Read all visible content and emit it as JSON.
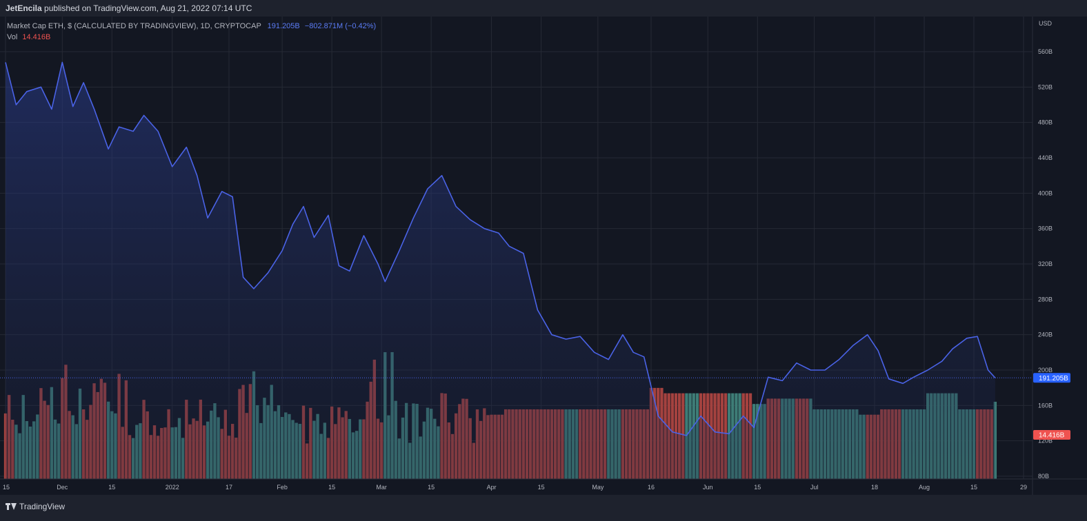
{
  "header": {
    "author": "JetEncila",
    "published_text": "published on TradingView.com, Aug 21, 2022 07:14 UTC"
  },
  "legend": {
    "symbol": "Market Cap ETH, $ (CALCULATED BY TRADINGVIEW), 1D, CRYPTOCAP",
    "last_value": "191.205B",
    "change": "−802.871M (−0.42%)",
    "volume_label": "Vol",
    "volume_value": "14.416B"
  },
  "footer": {
    "brand": "TradingView"
  },
  "colors": {
    "line": "#4a63e7",
    "volume_up": "#3e7d77",
    "volume_down": "#a4423f",
    "background": "#131722",
    "grid": "#262a35",
    "price_tag": "#2962ff",
    "volume_tag": "#ef5350"
  },
  "icons": {
    "logo": "tradingview-logo-icon"
  },
  "chart_data": {
    "type": "area",
    "title": "Market Cap ETH, $ (CALCULATED BY TRADINGVIEW), 1D, CRYPTOCAP",
    "y_unit": "USD",
    "ylim": [
      80,
      590
    ],
    "y_ticks": [
      "560B",
      "520B",
      "480B",
      "440B",
      "400B",
      "360B",
      "320B",
      "280B",
      "240B",
      "200B",
      "160B",
      "120B",
      "80B"
    ],
    "x_ticks": [
      "15",
      "Dec",
      "15",
      "2022",
      "17",
      "Feb",
      "15",
      "Mar",
      "15",
      "Apr",
      "15",
      "May",
      "16",
      "Jun",
      "15",
      "Jul",
      "18",
      "Aug",
      "15",
      "29"
    ],
    "x_range": [
      "2021-11-15",
      "2022-08-29"
    ],
    "grid": true,
    "last_price": "191.205B",
    "last_volume": "14.416B",
    "series": [
      {
        "name": "Market Cap ETH",
        "unit": "B USD",
        "dates": [
          "2021-11-15",
          "2021-11-18",
          "2021-11-21",
          "2021-11-25",
          "2021-11-28",
          "2021-12-01",
          "2021-12-04",
          "2021-12-07",
          "2021-12-10",
          "2021-12-14",
          "2021-12-17",
          "2021-12-21",
          "2021-12-24",
          "2021-12-28",
          "2022-01-01",
          "2022-01-05",
          "2022-01-08",
          "2022-01-11",
          "2022-01-15",
          "2022-01-18",
          "2022-01-21",
          "2022-01-24",
          "2022-01-28",
          "2022-02-01",
          "2022-02-04",
          "2022-02-07",
          "2022-02-10",
          "2022-02-14",
          "2022-02-17",
          "2022-02-20",
          "2022-02-24",
          "2022-02-28",
          "2022-03-02",
          "2022-03-06",
          "2022-03-10",
          "2022-03-14",
          "2022-03-18",
          "2022-03-22",
          "2022-03-26",
          "2022-03-30",
          "2022-04-03",
          "2022-04-06",
          "2022-04-10",
          "2022-04-14",
          "2022-04-18",
          "2022-04-22",
          "2022-04-26",
          "2022-04-30",
          "2022-05-04",
          "2022-05-08",
          "2022-05-11",
          "2022-05-14",
          "2022-05-18",
          "2022-05-22",
          "2022-05-26",
          "2022-05-30",
          "2022-06-03",
          "2022-06-07",
          "2022-06-11",
          "2022-06-14",
          "2022-06-18",
          "2022-06-22",
          "2022-06-26",
          "2022-06-30",
          "2022-07-04",
          "2022-07-08",
          "2022-07-12",
          "2022-07-16",
          "2022-07-19",
          "2022-07-22",
          "2022-07-26",
          "2022-07-29",
          "2022-08-02",
          "2022-08-06",
          "2022-08-09",
          "2022-08-13",
          "2022-08-16",
          "2022-08-19",
          "2022-08-21"
        ],
        "values": [
          548,
          500,
          515,
          520,
          495,
          548,
          498,
          525,
          495,
          450,
          475,
          470,
          488,
          470,
          430,
          452,
          420,
          372,
          402,
          396,
          305,
          292,
          310,
          335,
          365,
          385,
          350,
          375,
          318,
          312,
          352,
          320,
          300,
          335,
          372,
          405,
          420,
          385,
          370,
          360,
          355,
          340,
          332,
          268,
          240,
          235,
          238,
          220,
          212,
          240,
          220,
          215,
          148,
          130,
          126,
          148,
          130,
          128,
          148,
          135,
          192,
          188,
          208,
          200,
          200,
          212,
          228,
          240,
          222,
          190,
          185,
          192,
          200,
          210,
          224,
          236,
          238,
          200,
          191.2
        ]
      },
      {
        "name": "Vol",
        "unit": "B USD",
        "dates": [
          "2021-11-15",
          "2021-11-22",
          "2021-12-01",
          "2021-12-04",
          "2021-12-10",
          "2021-12-20",
          "2022-01-01",
          "2022-01-10",
          "2022-01-20",
          "2022-01-22",
          "2022-02-01",
          "2022-02-15",
          "2022-02-24",
          "2022-03-05",
          "2022-03-15",
          "2022-03-25",
          "2022-04-05",
          "2022-04-15",
          "2022-05-01",
          "2022-05-12",
          "2022-05-16",
          "2022-05-20",
          "2022-06-01",
          "2022-06-14",
          "2022-06-18",
          "2022-07-01",
          "2022-07-14",
          "2022-07-20",
          "2022-08-02",
          "2022-08-11",
          "2022-08-21"
        ],
        "values": [
          14,
          15,
          21,
          17,
          16,
          13,
          12,
          13,
          16,
          18,
          12,
          13,
          19,
          12,
          13,
          12,
          13,
          13,
          13,
          13,
          17,
          16,
          16,
          14,
          15,
          13,
          12,
          13,
          16,
          13,
          14.416
        ]
      }
    ]
  }
}
